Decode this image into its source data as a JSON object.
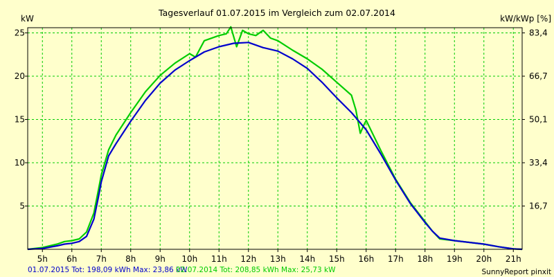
{
  "chart_data": {
    "type": "line",
    "title": "Tagesverlauf 01.07.2015 im Vergleich zum 02.07.2014",
    "ylabel_left": "kW",
    "ylabel_right": "kW/kWp [%]",
    "xlim": [
      4.5,
      21.3
    ],
    "ylim": [
      0,
      25.6
    ],
    "x_ticks": [
      5,
      6,
      7,
      8,
      9,
      10,
      11,
      12,
      13,
      14,
      15,
      16,
      17,
      18,
      19,
      20,
      21
    ],
    "x_tick_labels": [
      "5h",
      "6h",
      "7h",
      "8h",
      "9h",
      "10h",
      "11h",
      "12h",
      "13h",
      "14h",
      "15h",
      "16h",
      "17h",
      "18h",
      "19h",
      "20h",
      "21h"
    ],
    "y_ticks_left": [
      5,
      10,
      15,
      20,
      25
    ],
    "y_tick_labels_left": [
      "5",
      "10",
      "15",
      "20",
      "25"
    ],
    "y_tick_labels_right": [
      "16,7",
      "33,4",
      "50,1",
      "66,7",
      "83,4"
    ],
    "grid": true,
    "legend": [
      {
        "text": "01.07.2015 Tot: 198,09 kWh Max: 23,86 kW",
        "color": "#0000cc"
      },
      {
        "text": "02.07.2014 Tot: 208,85 kWh Max: 25,73 kW",
        "color": "#00cc00"
      }
    ],
    "footer": "SunnyReport pinxit",
    "series": [
      {
        "name": "01.07.2015",
        "color": "#0000cc",
        "x": [
          4.5,
          5.0,
          5.5,
          5.75,
          6.0,
          6.25,
          6.5,
          6.75,
          6.9,
          7.0,
          7.25,
          7.5,
          8.0,
          8.5,
          9.0,
          9.5,
          10.0,
          10.5,
          11.0,
          11.5,
          12.0,
          12.5,
          13.0,
          13.5,
          14.0,
          14.5,
          15.0,
          15.5,
          16.0,
          16.5,
          17.0,
          17.5,
          18.0,
          18.25,
          18.5,
          19.0,
          19.5,
          20.0,
          20.5,
          21.0,
          21.3
        ],
        "values": [
          0,
          0.1,
          0.4,
          0.6,
          0.7,
          0.9,
          1.5,
          3.5,
          6.0,
          7.8,
          10.8,
          12.2,
          14.8,
          17.2,
          19.2,
          20.7,
          21.8,
          22.8,
          23.4,
          23.8,
          23.9,
          23.3,
          22.9,
          22.0,
          20.9,
          19.3,
          17.5,
          15.8,
          13.8,
          11.0,
          8.0,
          5.3,
          3.1,
          2.1,
          1.3,
          1.0,
          0.8,
          0.6,
          0.3,
          0.05,
          0
        ]
      },
      {
        "name": "02.07.2014",
        "color": "#00cc00",
        "x": [
          4.5,
          5.0,
          5.5,
          5.75,
          6.0,
          6.25,
          6.5,
          6.75,
          6.9,
          7.0,
          7.25,
          7.5,
          8.0,
          8.5,
          9.0,
          9.5,
          10.0,
          10.2,
          10.5,
          11.0,
          11.25,
          11.4,
          11.6,
          11.8,
          12.0,
          12.25,
          12.5,
          12.75,
          13.0,
          13.5,
          14.0,
          14.5,
          15.0,
          15.5,
          15.65,
          15.8,
          15.9,
          16.0,
          16.5,
          17.0,
          17.5,
          18.0,
          18.25,
          18.5,
          19.0,
          19.5,
          20.0,
          20.5,
          21.0,
          21.3
        ],
        "values": [
          0,
          0.2,
          0.6,
          0.9,
          1.0,
          1.2,
          2.0,
          4.2,
          6.8,
          8.6,
          11.5,
          13.2,
          15.8,
          18.2,
          20.1,
          21.5,
          22.6,
          22.2,
          24.1,
          24.7,
          24.9,
          25.7,
          23.4,
          25.3,
          24.9,
          24.7,
          25.3,
          24.4,
          24.1,
          23.0,
          22.0,
          20.8,
          19.3,
          17.8,
          16.1,
          13.4,
          14.2,
          14.9,
          11.4,
          8.1,
          5.4,
          3.2,
          2.1,
          1.2,
          1.0,
          0.8,
          0.6,
          0.3,
          0.05,
          0
        ]
      }
    ]
  }
}
